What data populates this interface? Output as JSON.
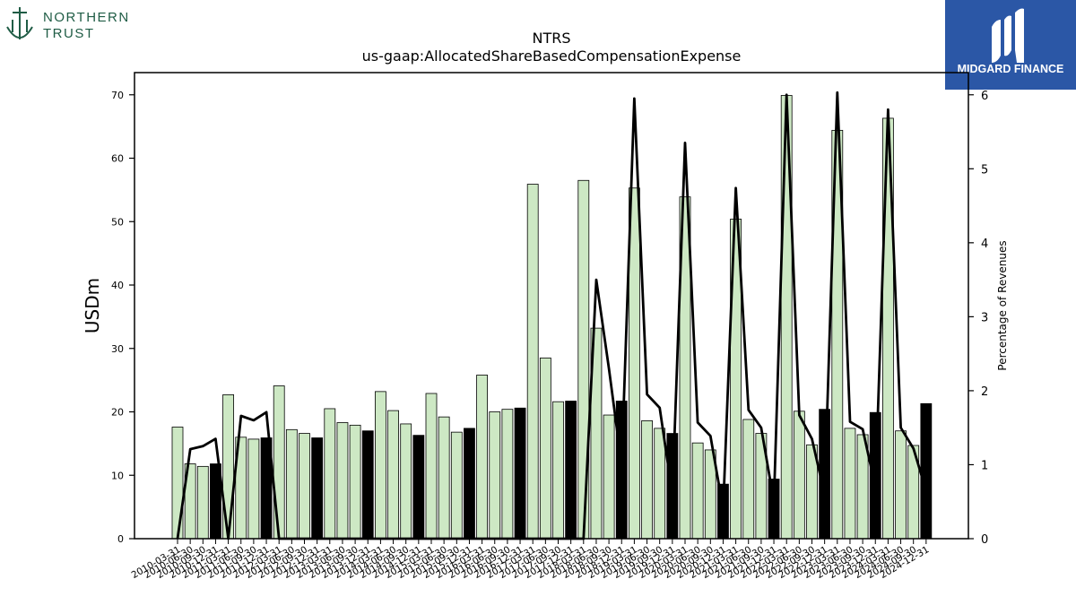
{
  "brand_left": {
    "line1": "NORTHERN",
    "line2": "TRUST",
    "color": "#1f5c45"
  },
  "brand_right": {
    "name": "MIDGARD FINANCE",
    "bg": "#2b57a6"
  },
  "chart_data": {
    "type": "bar",
    "title": "NTRS",
    "subtitle": "us-gaap:AllocatedShareBasedCompensationExpense",
    "ylabel": "USDm",
    "y2label": "Percentage of Revenues",
    "ylim": [
      0,
      73.5
    ],
    "y2lim": [
      0,
      6.3
    ],
    "yticks": [
      0,
      10,
      20,
      30,
      40,
      50,
      60,
      70
    ],
    "y2ticks": [
      0,
      1,
      2,
      3,
      4,
      5,
      6
    ],
    "bar_color": "#cde8c4",
    "highlight_color": "#000000",
    "categories": [
      "2010-03-31",
      "2010-06-30",
      "2010-09-30",
      "2010-12-31",
      "2011-03-31",
      "2011-06-30",
      "2011-09-30",
      "2011-12-31",
      "2012-03-31",
      "2012-06-30",
      "2012-09-30",
      "2012-12-31",
      "2013-03-31",
      "2013-06-30",
      "2013-09-30",
      "2013-12-31",
      "2014-03-31",
      "2014-06-30",
      "2014-09-30",
      "2014-12-31",
      "2015-03-31",
      "2015-06-30",
      "2015-09-30",
      "2015-12-31",
      "2016-03-31",
      "2016-06-30",
      "2016-09-30",
      "2016-12-31",
      "2017-03-31",
      "2017-06-30",
      "2017-09-30",
      "2017-12-31",
      "2018-03-31",
      "2018-06-30",
      "2018-09-30",
      "2018-12-31",
      "2019-03-31",
      "2019-06-30",
      "2019-09-30",
      "2019-12-31",
      "2020-03-31",
      "2020-06-30",
      "2020-09-30",
      "2020-12-31",
      "2021-03-31",
      "2021-06-30",
      "2021-09-30",
      "2021-12-31",
      "2022-03-31",
      "2022-06-30",
      "2022-09-30",
      "2022-12-31",
      "2023-03-31",
      "2023-06-30",
      "2023-09-30",
      "2023-12-31",
      "2024-03-31",
      "2024-06-30",
      "2024-09-30",
      "2024-12-31"
    ],
    "values": [
      17.6,
      11.8,
      11.4,
      11.8,
      22.7,
      16.0,
      15.7,
      15.9,
      24.1,
      17.2,
      16.6,
      15.9,
      20.5,
      18.3,
      17.9,
      17.0,
      23.2,
      20.2,
      18.1,
      16.3,
      22.9,
      19.2,
      16.8,
      17.4,
      25.8,
      20.0,
      20.4,
      20.6,
      55.9,
      28.5,
      21.6,
      21.7,
      56.5,
      33.2,
      19.5,
      21.7,
      55.3,
      18.6,
      17.4,
      16.6,
      53.9,
      15.1,
      14.0,
      8.6,
      50.4,
      18.8,
      16.6,
      9.4,
      69.9,
      20.1,
      14.8,
      20.4,
      64.4,
      17.4,
      16.4,
      19.9,
      66.3,
      17.0,
      14.7,
      21.3
    ],
    "highlighted": [
      false,
      false,
      false,
      true,
      false,
      false,
      false,
      true,
      false,
      false,
      false,
      true,
      false,
      false,
      false,
      true,
      false,
      false,
      false,
      true,
      false,
      false,
      false,
      true,
      false,
      false,
      false,
      true,
      false,
      false,
      false,
      true,
      false,
      false,
      false,
      true,
      false,
      false,
      false,
      true,
      false,
      false,
      false,
      true,
      false,
      false,
      false,
      true,
      false,
      false,
      false,
      true,
      false,
      false,
      false,
      true,
      false,
      false,
      false,
      true
    ],
    "series": [
      {
        "type": "line",
        "axis": "right",
        "values": [
          0,
          1.21,
          1.25,
          1.35,
          0,
          1.66,
          1.6,
          1.71,
          0,
          0,
          0,
          0,
          0,
          0,
          0,
          0,
          0,
          0,
          0,
          0,
          0,
          0,
          0,
          0,
          0,
          0,
          0,
          0,
          0,
          0,
          0,
          0,
          0,
          3.5,
          2.3,
          1.0,
          5.95,
          1.95,
          1.77,
          0.6,
          5.35,
          1.57,
          1.39,
          0.4,
          4.74,
          1.74,
          1.5,
          0.5,
          6.0,
          1.67,
          1.35,
          0.6,
          6.03,
          1.58,
          1.48,
          0.7,
          5.8,
          1.5,
          1.22,
          0.65
        ]
      }
    ],
    "grid": false,
    "legend": "none"
  }
}
